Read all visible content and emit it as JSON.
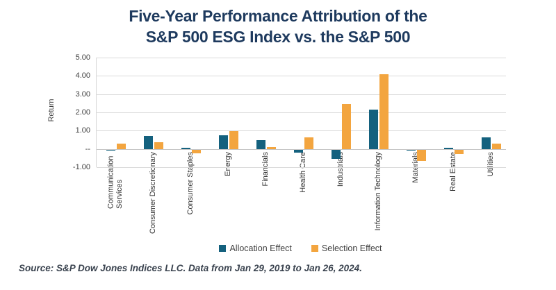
{
  "title": {
    "line1": "Five-Year Performance Attribution of the",
    "line2": "S&P 500 ESG Index vs. the S&P 500",
    "color": "#1e3a5e"
  },
  "chart_data": {
    "type": "bar",
    "title": "Five-Year Performance Attribution of the S&P 500 ESG Index vs. the S&P 500",
    "categories": [
      "Communication Services",
      "Consumer Discretionary",
      "Consumer Staples",
      "Energy",
      "Financials",
      "Health Care",
      "Industrials",
      "Information Technology",
      "Materials",
      "Real Estate",
      "Utilities"
    ],
    "series": [
      {
        "name": "Allocation Effect",
        "color": "#14617e",
        "values": [
          -0.05,
          0.72,
          0.05,
          0.73,
          0.48,
          -0.15,
          -0.5,
          2.15,
          -0.02,
          0.07,
          0.62
        ]
      },
      {
        "name": "Selection Effect",
        "color": "#f3a53f",
        "values": [
          0.3,
          0.36,
          -0.2,
          0.97,
          0.12,
          0.63,
          2.45,
          4.1,
          -0.62,
          -0.25,
          0.29
        ]
      }
    ],
    "xlabel": "",
    "ylabel": "Return",
    "ylim": [
      -1,
      5
    ],
    "yticks": [
      {
        "value": 5,
        "label": "5.00"
      },
      {
        "value": 4,
        "label": "4.00"
      },
      {
        "value": 3,
        "label": "3.00"
      },
      {
        "value": 2,
        "label": "2.00"
      },
      {
        "value": 1,
        "label": "1.00"
      },
      {
        "value": 0,
        "label": "--"
      },
      {
        "value": -1,
        "label": "-1.00"
      }
    ],
    "grid": "horizontal",
    "legend_position": "bottom"
  },
  "colors": {
    "gridline": "#d9d9d9",
    "zero_line": "#c6c6c6",
    "axis_text": "#3f3f3f",
    "category_text": "#333333"
  },
  "source_note": "Source: S&P Dow Jones Indices LLC. Data from Jan 29, 2019 to Jan 26, 2024."
}
